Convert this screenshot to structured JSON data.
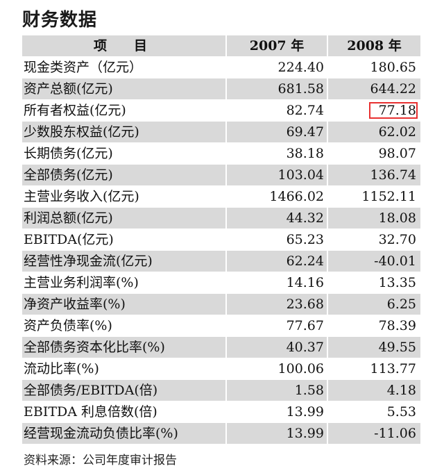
{
  "title": "财务数据",
  "table": {
    "headers": {
      "item": "项　目",
      "y2007": "2007 年",
      "y2008": "2008 年"
    },
    "rows": [
      {
        "item": "现金类资产（亿元）",
        "y2007": "224.40",
        "y2008": "180.65"
      },
      {
        "item": "资产总额(亿元)",
        "y2007": "681.58",
        "y2008": "644.22"
      },
      {
        "item": "所有者权益(亿元)",
        "y2007": "82.74",
        "y2008": "77.18"
      },
      {
        "item": "少数股东权益(亿元)",
        "y2007": "69.47",
        "y2008": "62.02"
      },
      {
        "item": "长期债务(亿元)",
        "y2007": "38.18",
        "y2008": "98.07"
      },
      {
        "item": "全部债务(亿元)",
        "y2007": "103.04",
        "y2008": "136.74"
      },
      {
        "item": "主营业务收入(亿元)",
        "y2007": "1466.02",
        "y2008": "1152.11"
      },
      {
        "item": "利润总额(亿元)",
        "y2007": "44.32",
        "y2008": "18.08"
      },
      {
        "item": "EBITDA(亿元)",
        "y2007": "65.23",
        "y2008": "32.70"
      },
      {
        "item": "经营性净现金流(亿元)",
        "y2007": "62.24",
        "y2008": "-40.01"
      },
      {
        "item": "主营业务利润率(%)",
        "y2007": "14.16",
        "y2008": "13.35"
      },
      {
        "item": "净资产收益率(%)",
        "y2007": "23.68",
        "y2008": "6.25"
      },
      {
        "item": "资产负债率(%)",
        "y2007": "77.67",
        "y2008": "78.39"
      },
      {
        "item": "全部债务资本化比率(%)",
        "y2007": "40.37",
        "y2008": "49.55"
      },
      {
        "item": "流动比率(%)",
        "y2007": "100.06",
        "y2008": "113.77"
      },
      {
        "item": "全部债务/EBITDA(倍)",
        "y2007": "1.58",
        "y2008": "4.18"
      },
      {
        "item": "EBITDA 利息倍数(倍)",
        "y2007": "13.99",
        "y2008": "5.53"
      },
      {
        "item": "经营现金流动负债比率(%)",
        "y2007": "13.99",
        "y2008": "-11.06"
      }
    ]
  },
  "highlight_color": "#e83030",
  "source": "资料来源：公司年度审计报告"
}
